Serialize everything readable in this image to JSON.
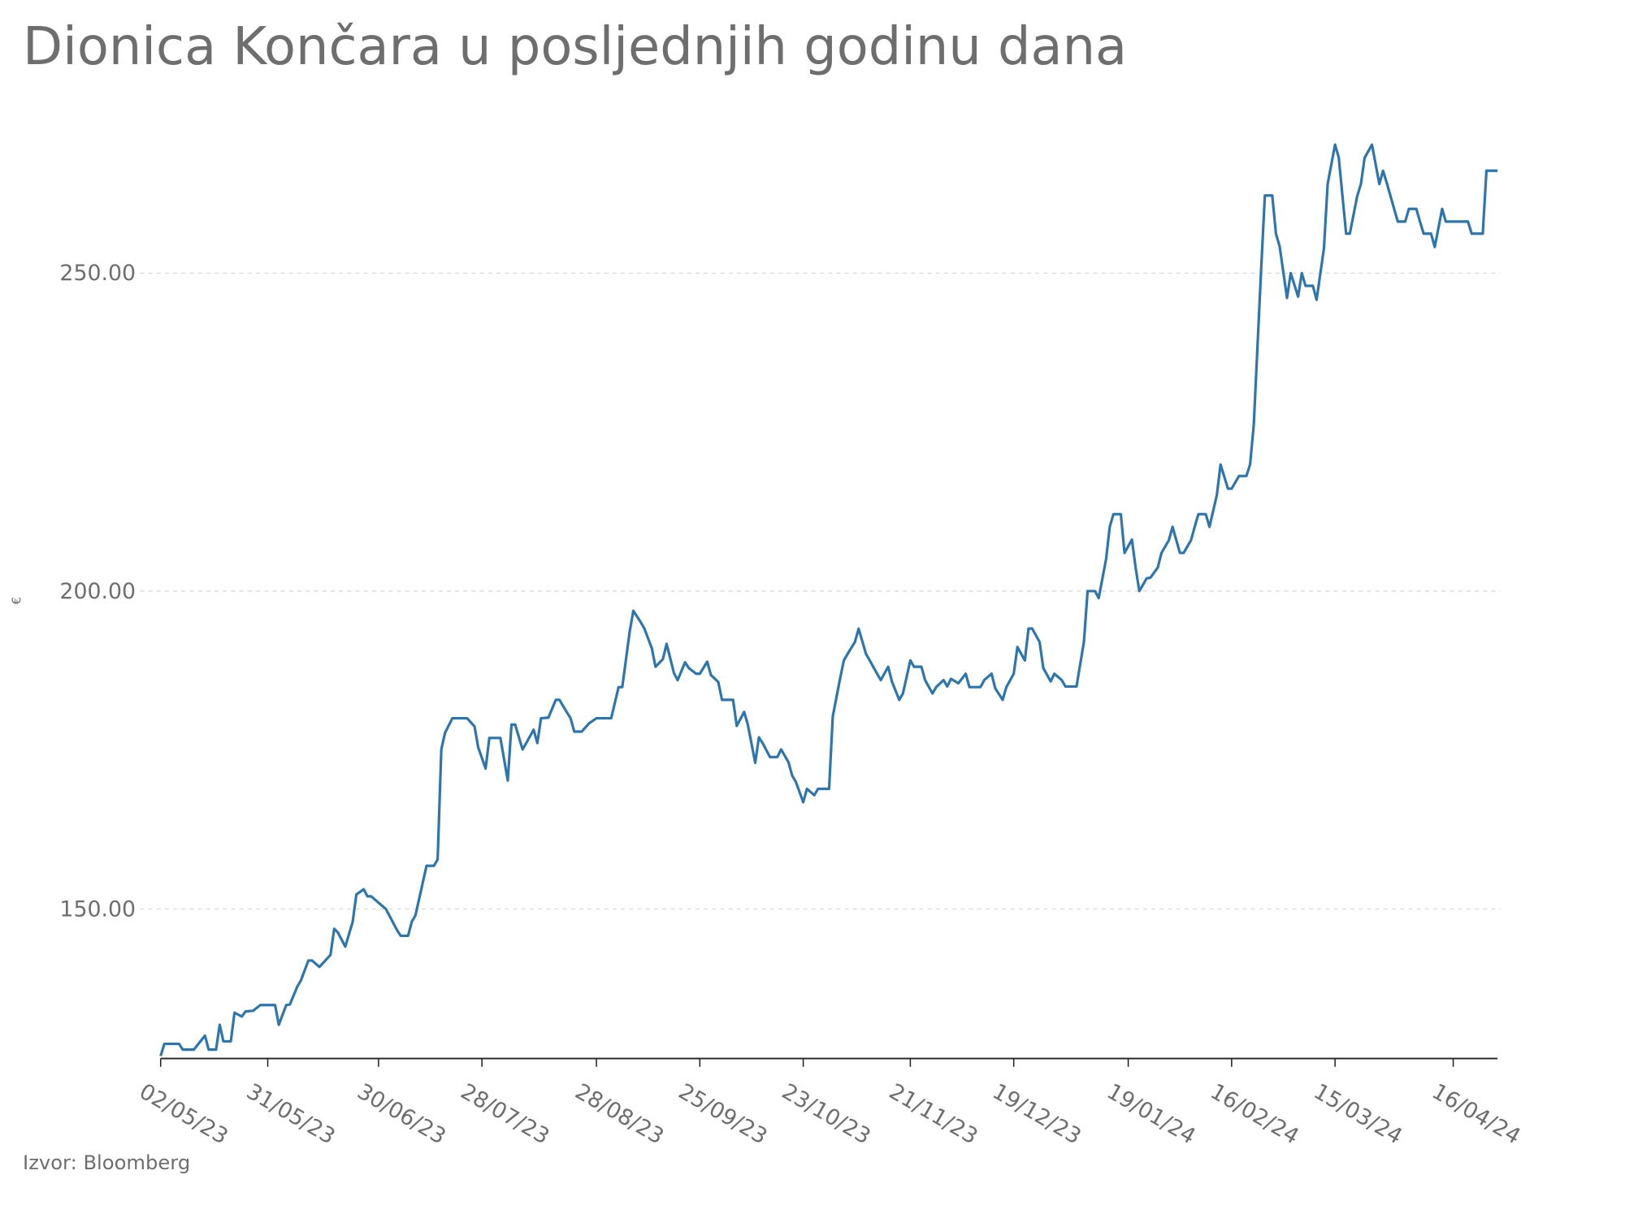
{
  "chart_data": {
    "type": "line",
    "title": "Dionica Končara u posljednjih godinu dana",
    "y_label": "€",
    "source": "Izvor: Bloomberg",
    "color": "#2e75ad",
    "grid": true,
    "xlim": [
      "02/05/23",
      "28/04/24"
    ],
    "xticks": [
      "02/05/23",
      "31/05/23",
      "30/06/23",
      "28/07/23",
      "28/08/23",
      "25/09/23",
      "23/10/23",
      "21/11/23",
      "19/12/23",
      "19/01/24",
      "16/02/24",
      "15/03/24",
      "16/04/24"
    ],
    "ylim": [
      126.5,
      272
    ],
    "yticks": [
      {
        "value": 150,
        "label": "150.00"
      },
      {
        "value": 200,
        "label": "200.00"
      },
      {
        "value": 250,
        "label": "250.00"
      }
    ],
    "x": [
      "02/05/23",
      "03/05/23",
      "07/05/23",
      "08/05/23",
      "11/05/23",
      "14/05/23",
      "15/05/23",
      "17/05/23",
      "18/05/23",
      "19/05/23",
      "21/05/23",
      "22/05/23",
      "24/05/23",
      "25/05/23",
      "27/05/23",
      "29/05/23",
      "02/06/23",
      "03/06/23",
      "05/06/23",
      "06/06/23",
      "08/06/23",
      "09/06/23",
      "11/06/23",
      "12/06/23",
      "14/06/23",
      "17/06/23",
      "18/06/23",
      "19/06/23",
      "21/06/23",
      "23/06/23",
      "24/06/23",
      "26/06/23",
      "27/06/23",
      "28/06/23",
      "02/07/23",
      "03/07/23",
      "05/07/23",
      "06/07/23",
      "08/07/23",
      "09/07/23",
      "10/07/23",
      "12/07/23",
      "13/07/23",
      "15/07/23",
      "16/07/23",
      "17/07/23",
      "18/07/23",
      "20/07/23",
      "24/07/23",
      "26/07/23",
      "27/07/23",
      "29/07/23",
      "30/07/23",
      "02/08/23",
      "04/08/23",
      "05/08/23",
      "06/08/23",
      "08/08/23",
      "09/08/23",
      "11/08/23",
      "12/08/23",
      "13/08/23",
      "15/08/23",
      "17/08/23",
      "18/08/23",
      "19/08/23",
      "21/08/23",
      "22/08/23",
      "24/08/23",
      "26/08/23",
      "28/08/23",
      "01/09/23",
      "03/09/23",
      "04/09/23",
      "06/09/23",
      "07/09/23",
      "09/09/23",
      "10/09/23",
      "12/09/23",
      "13/09/23",
      "15/09/23",
      "16/09/23",
      "18/09/23",
      "19/09/23",
      "21/09/23",
      "22/09/23",
      "24/09/23",
      "25/09/23",
      "27/09/23",
      "28/09/23",
      "30/09/23",
      "01/10/23",
      "04/10/23",
      "05/10/23",
      "07/10/23",
      "08/10/23",
      "10/10/23",
      "11/10/23",
      "12/10/23",
      "14/10/23",
      "16/10/23",
      "17/10/23",
      "19/10/23",
      "20/10/23",
      "21/10/23",
      "23/10/23",
      "24/10/23",
      "26/10/23",
      "27/10/23",
      "30/10/23",
      "31/10/23",
      "02/11/23",
      "03/11/23",
      "04/11/23",
      "06/11/23",
      "07/11/23",
      "09/11/23",
      "10/11/23",
      "12/11/23",
      "13/11/23",
      "15/11/23",
      "16/11/23",
      "18/11/23",
      "19/11/23",
      "21/11/23",
      "22/11/23",
      "24/11/23",
      "25/11/23",
      "27/11/23",
      "28/11/23",
      "30/11/23",
      "01/12/23",
      "02/12/23",
      "04/12/23",
      "06/12/23",
      "07/12/23",
      "10/12/23",
      "11/12/23",
      "13/12/23",
      "14/12/23",
      "16/12/23",
      "17/12/23",
      "19/12/23",
      "20/12/23",
      "22/12/23",
      "23/12/23",
      "24/12/23",
      "26/12/23",
      "27/12/23",
      "29/12/23",
      "30/12/23",
      "01/01/24",
      "02/01/24",
      "05/01/24",
      "07/01/24",
      "08/01/24",
      "10/01/24",
      "11/01/24",
      "13/01/24",
      "14/01/24",
      "15/01/24",
      "17/01/24",
      "18/01/24",
      "20/01/24",
      "21/01/24",
      "22/01/24",
      "24/01/24",
      "25/01/24",
      "27/01/24",
      "28/01/24",
      "30/01/24",
      "31/01/24",
      "02/02/24",
      "03/02/24",
      "05/02/24",
      "06/02/24",
      "07/02/24",
      "09/02/24",
      "10/02/24",
      "12/02/24",
      "13/02/24",
      "15/02/24",
      "16/02/24",
      "18/02/24",
      "20/02/24",
      "21/02/24",
      "22/02/24",
      "24/02/24",
      "25/02/24",
      "27/02/24",
      "28/02/24",
      "29/02/24",
      "02/03/24",
      "03/03/24",
      "05/03/24",
      "06/03/24",
      "07/03/24",
      "09/03/24",
      "10/03/24",
      "12/03/24",
      "13/03/24",
      "15/03/24",
      "16/03/24",
      "18/03/24",
      "19/03/24",
      "21/03/24",
      "22/03/24",
      "23/03/24",
      "25/03/24",
      "27/03/24",
      "28/03/24",
      "29/03/24",
      "31/03/24",
      "01/04/24",
      "03/04/24",
      "04/04/24",
      "06/04/24",
      "07/04/24",
      "08/04/24",
      "10/04/24",
      "11/04/24",
      "13/04/24",
      "14/04/24",
      "20/04/24",
      "21/04/24",
      "24/04/24",
      "25/04/24",
      "28/04/24"
    ],
    "values": [
      126.9,
      128.8,
      128.8,
      127.9,
      127.9,
      130.1,
      127.9,
      127.9,
      131.8,
      129.2,
      129.2,
      133.7,
      133.1,
      133.9,
      134.0,
      134.9,
      134.9,
      131.8,
      134.9,
      135.0,
      137.8,
      138.8,
      141.9,
      141.9,
      140.9,
      142.8,
      146.9,
      146.3,
      144.1,
      148.0,
      152.3,
      153.1,
      152.0,
      152.0,
      150.0,
      148.9,
      146.7,
      145.8,
      145.8,
      148.0,
      149.0,
      154.2,
      156.8,
      156.8,
      157.8,
      175.1,
      177.7,
      180.0,
      180.0,
      178.7,
      175.4,
      172.1,
      176.9,
      176.9,
      170.2,
      179.0,
      179.0,
      175.1,
      176.1,
      178.2,
      176.1,
      180.0,
      180.1,
      182.9,
      182.9,
      181.9,
      180.0,
      177.9,
      177.9,
      179.2,
      180.0,
      180.0,
      184.9,
      184.9,
      193.6,
      196.9,
      195.1,
      194.1,
      191.0,
      188.1,
      189.3,
      191.7,
      187.1,
      186.0,
      188.8,
      187.9,
      187.0,
      187.0,
      188.9,
      186.8,
      185.7,
      182.9,
      182.9,
      178.8,
      181.0,
      179.0,
      173.0,
      177.0,
      176.1,
      173.9,
      173.9,
      175.1,
      173.1,
      171.0,
      170.0,
      166.8,
      168.9,
      167.9,
      168.9,
      168.9,
      180.3,
      186.3,
      189.1,
      190.1,
      192.0,
      194.1,
      190.1,
      189.1,
      187.0,
      186.0,
      188.1,
      185.8,
      182.9,
      183.9,
      189.1,
      188.1,
      188.1,
      186.0,
      183.9,
      184.9,
      186.0,
      185.0,
      186.2,
      185.5,
      187.0,
      184.9,
      184.9,
      186.0,
      187.0,
      184.7,
      182.9,
      184.9,
      187.0,
      191.2,
      189.1,
      194.1,
      194.1,
      192.0,
      187.9,
      185.8,
      187.0,
      186.0,
      185.0,
      185.0,
      192.0,
      200.0,
      200.0,
      198.9,
      205.0,
      210.1,
      212.1,
      212.1,
      206.0,
      208.1,
      203.7,
      200.0,
      202.0,
      202.1,
      203.7,
      206.0,
      208.0,
      210.1,
      206.0,
      206.0,
      208.0,
      210.1,
      212.1,
      212.1,
      210.1,
      215.1,
      219.9,
      216.1,
      216.1,
      218.1,
      218.1,
      219.9,
      226.2,
      250.7,
      262.2,
      262.2,
      256.2,
      254.2,
      246.1,
      250.0,
      246.3,
      250.0,
      248.0,
      248.0,
      245.8,
      253.9,
      264.0,
      270.2,
      268.2,
      256.2,
      256.2,
      262.1,
      264.0,
      268.1,
      270.2,
      264.0,
      266.1,
      264.2,
      260.1,
      258.1,
      258.1,
      260.1,
      260.1,
      258.1,
      256.2,
      256.2,
      254.1,
      260.1,
      258.1,
      258.1,
      256.2,
      256.2,
      266.1,
      266.1
    ]
  }
}
